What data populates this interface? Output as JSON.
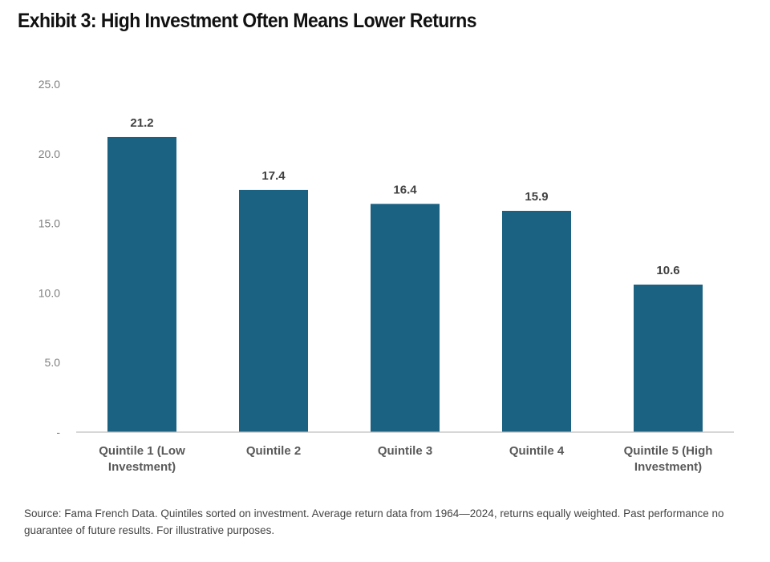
{
  "title": "Exhibit 3: High Investment Often Means Lower Returns",
  "footnote": "Source: Fama French Data. Quintiles sorted on investment. Average return data from 1964—2024, returns equally weighted. Past performance no guarantee of future results. For illustrative purposes.",
  "colors": {
    "bar": "#1b6182",
    "axis": "#bfbfbf",
    "tick_text": "#7f7f7f",
    "label_text": "#404040"
  },
  "chart_data": {
    "type": "bar",
    "categories": [
      "Quintile 1 (Low Investment)",
      "Quintile 2",
      "Quintile 3",
      "Quintile 4",
      "Quintile 5 (High Investment)"
    ],
    "category_lines": [
      [
        "Quintile 1 (Low",
        "Investment)"
      ],
      [
        "Quintile 2"
      ],
      [
        "Quintile 3"
      ],
      [
        "Quintile 4"
      ],
      [
        "Quintile 5 (High",
        "Investment)"
      ]
    ],
    "values": [
      21.2,
      17.4,
      16.4,
      15.9,
      10.6
    ],
    "data_labels": [
      "21.2",
      "17.4",
      "16.4",
      "15.9",
      "10.6"
    ],
    "yticks": [
      0,
      5,
      10,
      15,
      20,
      25
    ],
    "ytick_labels": [
      "-",
      "5.0",
      "10.0",
      "15.0",
      "20.0",
      "25.0"
    ],
    "ylim": [
      0,
      25
    ],
    "xlabel": "",
    "ylabel": "",
    "grid": false,
    "legend": "none"
  }
}
